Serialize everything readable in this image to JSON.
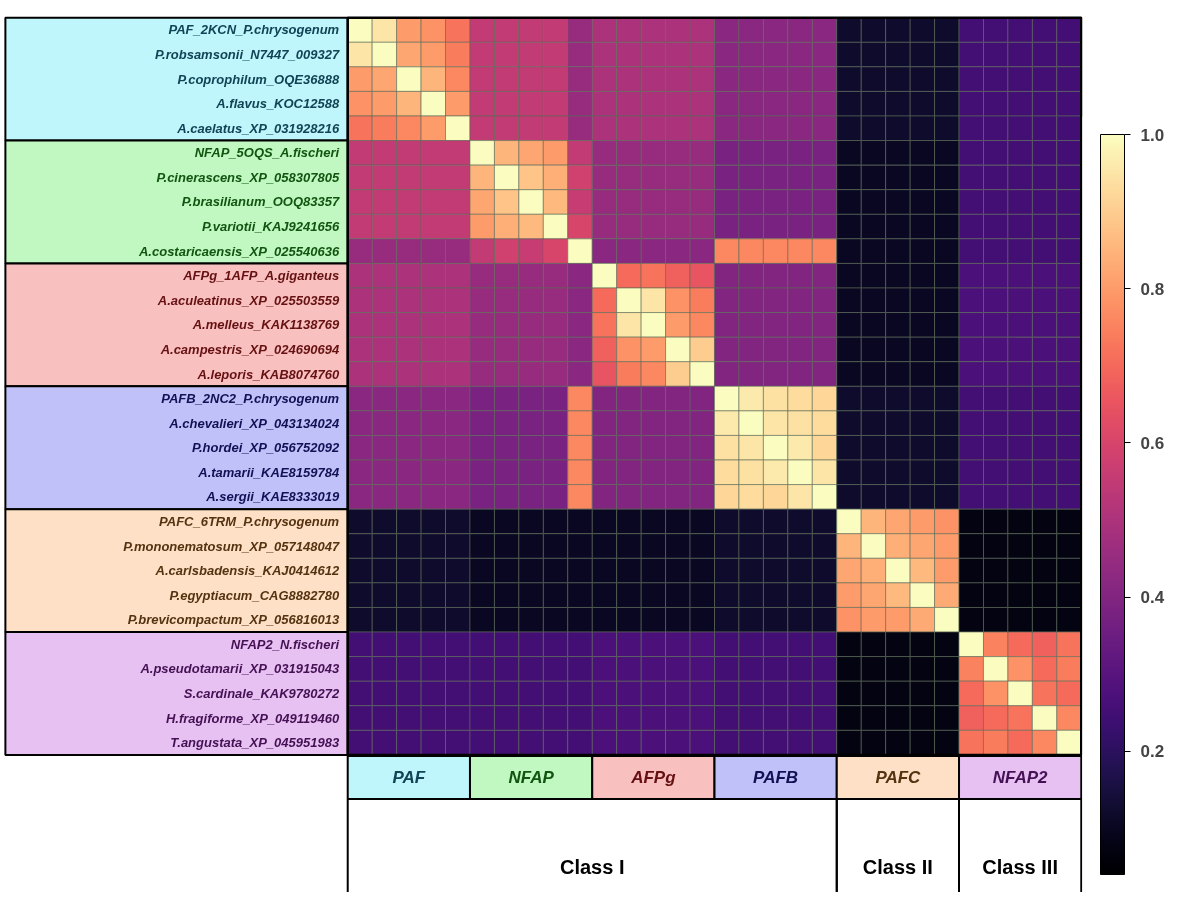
{
  "chart_data": {
    "type": "heatmap",
    "categories": [
      null,
      null,
      null,
      null,
      null,
      null,
      null,
      null,
      null,
      null,
      null,
      null,
      null,
      null,
      null,
      null,
      null,
      null,
      null,
      null,
      null,
      null,
      null,
      null,
      null,
      null,
      null,
      null,
      null,
      null
    ],
    "y_categories": [
      "PAF_2KCN_P.chrysogenum",
      "P.robsamsonii_N7447_009327",
      "P.coprophilum_OQE36888",
      "A.flavus_KOC12588",
      "A.caelatus_XP_031928216",
      "NFAP_5OQS_A.fischeri",
      "P.cinerascens_XP_058307805",
      "P.brasilianum_OOQ83357",
      "P.variotii_KAJ9241656",
      "A.costaricaensis_XP_025540636",
      "AFPg_1AFP_A.giganteus",
      "A.aculeatinus_XP_025503559",
      "A.melleus_KAK1138769",
      "A.campestris_XP_024690694",
      "A.leporis_KAB8074760",
      "PAFB_2NC2_P.chrysogenum",
      "A.chevalieri_XP_043134024",
      "P.hordei_XP_056752092",
      "A.tamarii_KAE8159784",
      "A.sergii_KAE8333019",
      "PAFC_6TRM_P.chrysogenum",
      "P.mononematosum_XP_057148047",
      "A.carlsbadensis_KAJ0414612",
      "P.egyptiacum_CAG8882780",
      "P.brevicompactum_XP_056816013",
      "NFAP2_N.fischeri",
      "A.pseudotamarii_XP_031915043",
      "S.cardinale_KAK9780272",
      "H.fragiforme_XP_049119460",
      "T.angustata_XP_045951983"
    ],
    "cells": [
      [
        1,
        0.95,
        0.8,
        0.78,
        0.72,
        0.55,
        0.55,
        0.55,
        0.55,
        0.45,
        0.5,
        0.5,
        0.5,
        0.5,
        0.5,
        0.42,
        0.42,
        0.42,
        0.42,
        0.42,
        0.12,
        0.12,
        0.12,
        0.12,
        0.12,
        0.25,
        0.25,
        0.25,
        0.25,
        0.25
      ],
      [
        0.95,
        1,
        0.82,
        0.8,
        0.74,
        0.55,
        0.55,
        0.55,
        0.55,
        0.45,
        0.5,
        0.5,
        0.5,
        0.5,
        0.5,
        0.42,
        0.42,
        0.42,
        0.42,
        0.42,
        0.12,
        0.12,
        0.12,
        0.12,
        0.12,
        0.25,
        0.25,
        0.25,
        0.25,
        0.25
      ],
      [
        0.8,
        0.82,
        1,
        0.85,
        0.76,
        0.55,
        0.55,
        0.55,
        0.55,
        0.45,
        0.5,
        0.5,
        0.5,
        0.5,
        0.5,
        0.42,
        0.42,
        0.42,
        0.42,
        0.42,
        0.12,
        0.12,
        0.12,
        0.12,
        0.12,
        0.25,
        0.25,
        0.25,
        0.25,
        0.25
      ],
      [
        0.78,
        0.8,
        0.85,
        1,
        0.8,
        0.55,
        0.55,
        0.55,
        0.55,
        0.45,
        0.5,
        0.5,
        0.5,
        0.5,
        0.5,
        0.42,
        0.42,
        0.42,
        0.42,
        0.42,
        0.12,
        0.12,
        0.12,
        0.12,
        0.12,
        0.25,
        0.25,
        0.25,
        0.25,
        0.25
      ],
      [
        0.72,
        0.74,
        0.76,
        0.8,
        1,
        0.55,
        0.55,
        0.55,
        0.55,
        0.45,
        0.5,
        0.5,
        0.5,
        0.5,
        0.5,
        0.42,
        0.42,
        0.42,
        0.42,
        0.42,
        0.12,
        0.12,
        0.12,
        0.12,
        0.12,
        0.25,
        0.25,
        0.25,
        0.25,
        0.25
      ],
      [
        0.55,
        0.55,
        0.55,
        0.55,
        0.55,
        1,
        0.85,
        0.82,
        0.8,
        0.55,
        0.45,
        0.45,
        0.45,
        0.45,
        0.45,
        0.38,
        0.38,
        0.38,
        0.38,
        0.38,
        0.1,
        0.1,
        0.1,
        0.1,
        0.1,
        0.25,
        0.25,
        0.25,
        0.25,
        0.25
      ],
      [
        0.55,
        0.55,
        0.55,
        0.55,
        0.55,
        0.85,
        1,
        0.88,
        0.84,
        0.58,
        0.45,
        0.45,
        0.45,
        0.45,
        0.45,
        0.38,
        0.38,
        0.38,
        0.38,
        0.38,
        0.1,
        0.1,
        0.1,
        0.1,
        0.1,
        0.25,
        0.25,
        0.25,
        0.25,
        0.25
      ],
      [
        0.55,
        0.55,
        0.55,
        0.55,
        0.55,
        0.82,
        0.88,
        1,
        0.86,
        0.56,
        0.45,
        0.45,
        0.45,
        0.45,
        0.45,
        0.38,
        0.38,
        0.38,
        0.38,
        0.38,
        0.1,
        0.1,
        0.1,
        0.1,
        0.1,
        0.25,
        0.25,
        0.25,
        0.25,
        0.25
      ],
      [
        0.55,
        0.55,
        0.55,
        0.55,
        0.55,
        0.8,
        0.84,
        0.86,
        1,
        0.6,
        0.45,
        0.45,
        0.45,
        0.45,
        0.45,
        0.38,
        0.38,
        0.38,
        0.38,
        0.38,
        0.1,
        0.1,
        0.1,
        0.1,
        0.1,
        0.25,
        0.25,
        0.25,
        0.25,
        0.25
      ],
      [
        0.45,
        0.45,
        0.45,
        0.45,
        0.45,
        0.55,
        0.58,
        0.56,
        0.6,
        1,
        0.42,
        0.42,
        0.42,
        0.42,
        0.42,
        0.76,
        0.76,
        0.76,
        0.76,
        0.76,
        0.1,
        0.1,
        0.1,
        0.1,
        0.1,
        0.25,
        0.25,
        0.25,
        0.25,
        0.25
      ],
      [
        0.5,
        0.5,
        0.5,
        0.5,
        0.5,
        0.45,
        0.45,
        0.45,
        0.45,
        0.42,
        1,
        0.7,
        0.72,
        0.68,
        0.65,
        0.4,
        0.4,
        0.4,
        0.4,
        0.4,
        0.1,
        0.1,
        0.1,
        0.1,
        0.1,
        0.27,
        0.27,
        0.27,
        0.27,
        0.27
      ],
      [
        0.5,
        0.5,
        0.5,
        0.5,
        0.5,
        0.45,
        0.45,
        0.45,
        0.45,
        0.42,
        0.7,
        1,
        0.95,
        0.78,
        0.74,
        0.4,
        0.4,
        0.4,
        0.4,
        0.4,
        0.1,
        0.1,
        0.1,
        0.1,
        0.1,
        0.27,
        0.27,
        0.27,
        0.27,
        0.27
      ],
      [
        0.5,
        0.5,
        0.5,
        0.5,
        0.5,
        0.45,
        0.45,
        0.45,
        0.45,
        0.42,
        0.72,
        0.95,
        1,
        0.8,
        0.76,
        0.4,
        0.4,
        0.4,
        0.4,
        0.4,
        0.1,
        0.1,
        0.1,
        0.1,
        0.1,
        0.27,
        0.27,
        0.27,
        0.27,
        0.27
      ],
      [
        0.5,
        0.5,
        0.5,
        0.5,
        0.5,
        0.45,
        0.45,
        0.45,
        0.45,
        0.42,
        0.68,
        0.78,
        0.8,
        1,
        0.9,
        0.4,
        0.4,
        0.4,
        0.4,
        0.4,
        0.1,
        0.1,
        0.1,
        0.1,
        0.1,
        0.27,
        0.27,
        0.27,
        0.27,
        0.27
      ],
      [
        0.5,
        0.5,
        0.5,
        0.5,
        0.5,
        0.45,
        0.45,
        0.45,
        0.45,
        0.42,
        0.65,
        0.74,
        0.76,
        0.9,
        1,
        0.4,
        0.4,
        0.4,
        0.4,
        0.4,
        0.1,
        0.1,
        0.1,
        0.1,
        0.1,
        0.27,
        0.27,
        0.27,
        0.27,
        0.27
      ],
      [
        0.42,
        0.42,
        0.42,
        0.42,
        0.42,
        0.38,
        0.38,
        0.38,
        0.38,
        0.76,
        0.4,
        0.4,
        0.4,
        0.4,
        0.4,
        1,
        0.96,
        0.94,
        0.93,
        0.92,
        0.12,
        0.12,
        0.12,
        0.12,
        0.12,
        0.25,
        0.25,
        0.25,
        0.25,
        0.25
      ],
      [
        0.42,
        0.42,
        0.42,
        0.42,
        0.42,
        0.38,
        0.38,
        0.38,
        0.38,
        0.76,
        0.4,
        0.4,
        0.4,
        0.4,
        0.4,
        0.96,
        1,
        0.95,
        0.94,
        0.93,
        0.12,
        0.12,
        0.12,
        0.12,
        0.12,
        0.25,
        0.25,
        0.25,
        0.25,
        0.25
      ],
      [
        0.42,
        0.42,
        0.42,
        0.42,
        0.42,
        0.38,
        0.38,
        0.38,
        0.38,
        0.76,
        0.4,
        0.4,
        0.4,
        0.4,
        0.4,
        0.94,
        0.95,
        1,
        0.96,
        0.92,
        0.12,
        0.12,
        0.12,
        0.12,
        0.12,
        0.25,
        0.25,
        0.25,
        0.25,
        0.25
      ],
      [
        0.42,
        0.42,
        0.42,
        0.42,
        0.42,
        0.38,
        0.38,
        0.38,
        0.38,
        0.76,
        0.4,
        0.4,
        0.4,
        0.4,
        0.4,
        0.93,
        0.94,
        0.96,
        1,
        0.95,
        0.12,
        0.12,
        0.12,
        0.12,
        0.12,
        0.25,
        0.25,
        0.25,
        0.25,
        0.25
      ],
      [
        0.42,
        0.42,
        0.42,
        0.42,
        0.42,
        0.38,
        0.38,
        0.38,
        0.38,
        0.76,
        0.4,
        0.4,
        0.4,
        0.4,
        0.4,
        0.92,
        0.93,
        0.92,
        0.95,
        1,
        0.12,
        0.12,
        0.12,
        0.12,
        0.12,
        0.25,
        0.25,
        0.25,
        0.25,
        0.25
      ],
      [
        0.12,
        0.12,
        0.12,
        0.12,
        0.12,
        0.1,
        0.1,
        0.1,
        0.1,
        0.1,
        0.1,
        0.1,
        0.1,
        0.1,
        0.1,
        0.12,
        0.12,
        0.12,
        0.12,
        0.12,
        1,
        0.85,
        0.82,
        0.8,
        0.78,
        0.07,
        0.07,
        0.07,
        0.07,
        0.07
      ],
      [
        0.12,
        0.12,
        0.12,
        0.12,
        0.12,
        0.1,
        0.1,
        0.1,
        0.1,
        0.1,
        0.1,
        0.1,
        0.1,
        0.1,
        0.1,
        0.12,
        0.12,
        0.12,
        0.12,
        0.12,
        0.85,
        1,
        0.84,
        0.82,
        0.8,
        0.07,
        0.07,
        0.07,
        0.07,
        0.07
      ],
      [
        0.12,
        0.12,
        0.12,
        0.12,
        0.12,
        0.1,
        0.1,
        0.1,
        0.1,
        0.1,
        0.1,
        0.1,
        0.1,
        0.1,
        0.1,
        0.12,
        0.12,
        0.12,
        0.12,
        0.12,
        0.82,
        0.84,
        1,
        0.86,
        0.8,
        0.07,
        0.07,
        0.07,
        0.07,
        0.07
      ],
      [
        0.12,
        0.12,
        0.12,
        0.12,
        0.12,
        0.1,
        0.1,
        0.1,
        0.1,
        0.1,
        0.1,
        0.1,
        0.1,
        0.1,
        0.1,
        0.12,
        0.12,
        0.12,
        0.12,
        0.12,
        0.8,
        0.82,
        0.86,
        1,
        0.83,
        0.07,
        0.07,
        0.07,
        0.07,
        0.07
      ],
      [
        0.12,
        0.12,
        0.12,
        0.12,
        0.12,
        0.1,
        0.1,
        0.1,
        0.1,
        0.1,
        0.1,
        0.1,
        0.1,
        0.1,
        0.1,
        0.12,
        0.12,
        0.12,
        0.12,
        0.12,
        0.78,
        0.8,
        0.8,
        0.83,
        1,
        0.07,
        0.07,
        0.07,
        0.07,
        0.07
      ],
      [
        0.25,
        0.25,
        0.25,
        0.25,
        0.25,
        0.25,
        0.25,
        0.25,
        0.25,
        0.25,
        0.27,
        0.27,
        0.27,
        0.27,
        0.27,
        0.25,
        0.25,
        0.25,
        0.25,
        0.25,
        0.07,
        0.07,
        0.07,
        0.07,
        0.07,
        1,
        0.75,
        0.7,
        0.68,
        0.72
      ],
      [
        0.25,
        0.25,
        0.25,
        0.25,
        0.25,
        0.25,
        0.25,
        0.25,
        0.25,
        0.25,
        0.27,
        0.27,
        0.27,
        0.27,
        0.27,
        0.25,
        0.25,
        0.25,
        0.25,
        0.25,
        0.07,
        0.07,
        0.07,
        0.07,
        0.07,
        0.75,
        1,
        0.78,
        0.7,
        0.74
      ],
      [
        0.25,
        0.25,
        0.25,
        0.25,
        0.25,
        0.25,
        0.25,
        0.25,
        0.25,
        0.25,
        0.27,
        0.27,
        0.27,
        0.27,
        0.27,
        0.25,
        0.25,
        0.25,
        0.25,
        0.25,
        0.07,
        0.07,
        0.07,
        0.07,
        0.07,
        0.7,
        0.78,
        1,
        0.72,
        0.7
      ],
      [
        0.25,
        0.25,
        0.25,
        0.25,
        0.25,
        0.25,
        0.25,
        0.25,
        0.25,
        0.25,
        0.27,
        0.27,
        0.27,
        0.27,
        0.27,
        0.25,
        0.25,
        0.25,
        0.25,
        0.25,
        0.07,
        0.07,
        0.07,
        0.07,
        0.07,
        0.68,
        0.7,
        0.72,
        1,
        0.76
      ],
      [
        0.25,
        0.25,
        0.25,
        0.25,
        0.25,
        0.25,
        0.25,
        0.25,
        0.25,
        0.25,
        0.27,
        0.27,
        0.27,
        0.27,
        0.27,
        0.25,
        0.25,
        0.25,
        0.25,
        0.25,
        0.07,
        0.07,
        0.07,
        0.07,
        0.07,
        0.72,
        0.74,
        0.7,
        0.76,
        1
      ]
    ],
    "clim": [
      0.04,
      1
    ],
    "cticks": [
      0.2,
      0.4,
      0.6,
      0.8,
      {
        "value": 1,
        "label": "1.0"
      }
    ],
    "annotations": [
      "PAF",
      "NFAP",
      "AFPg",
      "PAFB",
      "PAFC",
      "NFAP2",
      "Class I",
      "Class II",
      "Class III"
    ]
  }
}
